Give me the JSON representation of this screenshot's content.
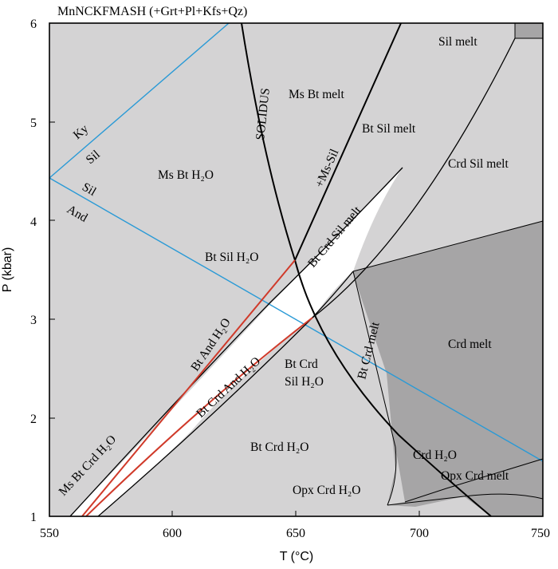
{
  "chart_data": {
    "type": "diagram",
    "title": "MnNCKFMASH (+Grt+Pl+Kfs+Qz)",
    "xlabel": "T (°C)",
    "ylabel": "P (kbar)",
    "xlim": [
      550,
      750
    ],
    "ylim": [
      1,
      6
    ],
    "xticks": [
      "550",
      "600",
      "650",
      "700",
      "750"
    ],
    "yticks": [
      "1",
      "2",
      "3",
      "4",
      "5",
      "6"
    ],
    "colors": {
      "field_light": "#d4d3d4",
      "field_dark": "#a6a5a6",
      "aluminosilicate": "#2a9ad6",
      "reaction_red": "#d03a2a",
      "line": "#000000"
    },
    "field_labels": {
      "sil_melt": "Sil melt",
      "ms_bt_melt": "Ms Bt melt",
      "bt_sil_melt": "Bt Sil melt",
      "crd_sil_melt": "Crd Sil melt",
      "ms_bt_h2o": "Ms Bt H₂O",
      "solidus": "SOLIDUS",
      "ms_sil": "+Ms-Sil",
      "bt_crd_sil_melt": "Bt Crd Sil melt",
      "bt_sil_h2o": "Bt Sil H₂O",
      "bt_and_h2o": "Bt And H₂O",
      "bt_crd_melt": "Bt Crd melt",
      "crd_melt": "Crd melt",
      "bt_crd_and_h2o": "Bt Crd And H₂O",
      "bt_crd_1": "Bt Crd",
      "sil_h2o": "Sil H₂O",
      "ms_bt_crd_h2o": "Ms Bt Crd H₂O",
      "bt_crd_h2o": "Bt Crd H₂O",
      "crd_h2o": "Crd H₂O",
      "opx_crd_h2o": "Opx Crd H₂O",
      "opx_crd_melt": "Opx Crd melt",
      "ky": "Ky",
      "sil_1": "Sil",
      "sil_2": "Sil",
      "and": "And"
    },
    "reaction_lines": [
      {
        "id": "ky_sil",
        "color": "aluminosilicate",
        "points": [
          [
            550,
            4.42
          ],
          [
            622,
            6.0
          ]
        ]
      },
      {
        "id": "sil_and",
        "color": "aluminosilicate",
        "points": [
          [
            550,
            4.42
          ],
          [
            750,
            1.55
          ]
        ]
      },
      {
        "id": "solidus",
        "color": "line",
        "points": [
          [
            632,
            6.0
          ],
          [
            640,
            4.9
          ],
          [
            645,
            4.25
          ],
          [
            650,
            3.6
          ]
        ]
      },
      {
        "id": "ms_sil_out",
        "color": "line",
        "points": [
          [
            650,
            3.6
          ],
          [
            660,
            4.25
          ],
          [
            671,
            4.85
          ],
          [
            681,
            5.45
          ],
          [
            697,
            6.0
          ]
        ]
      },
      {
        "id": "sil_melt_boundary",
        "color": "line",
        "points": [
          [
            655,
            2.97
          ],
          [
            675,
            3.6
          ],
          [
            700,
            4.6
          ],
          [
            726,
            5.65
          ]
        ]
      },
      {
        "id": "bt_crd_melt_boundary",
        "color": "line",
        "points": [
          [
            650,
            3.6
          ],
          [
            656,
            2.97
          ],
          [
            672,
            2.15
          ],
          [
            693,
            1.5
          ],
          [
            725,
            1.0
          ]
        ]
      },
      {
        "id": "ms_bt_crd_upper",
        "color": "line",
        "points": [
          [
            557,
            1.0
          ],
          [
            585,
            1.75
          ],
          [
            615,
            2.45
          ],
          [
            640,
            3.0
          ],
          [
            655,
            3.3
          ],
          [
            700,
            4.05
          ]
        ]
      },
      {
        "id": "bt_crd_lower",
        "color": "line",
        "points": [
          [
            569,
            1.0
          ],
          [
            600,
            1.6
          ],
          [
            630,
            2.15
          ],
          [
            650,
            2.6
          ],
          [
            674,
            3.48
          ]
        ]
      },
      {
        "id": "and_red_1",
        "color": "reaction_red",
        "points": [
          [
            562,
            1.0
          ],
          [
            595,
            1.95
          ],
          [
            625,
            2.75
          ],
          [
            640,
            3.2
          ],
          [
            650,
            3.6
          ]
        ]
      },
      {
        "id": "and_red_2",
        "color": "reaction_red",
        "points": [
          [
            565,
            1.0
          ],
          [
            600,
            1.75
          ],
          [
            630,
            2.35
          ],
          [
            645,
            2.73
          ],
          [
            656,
            2.97
          ]
        ]
      }
    ]
  }
}
